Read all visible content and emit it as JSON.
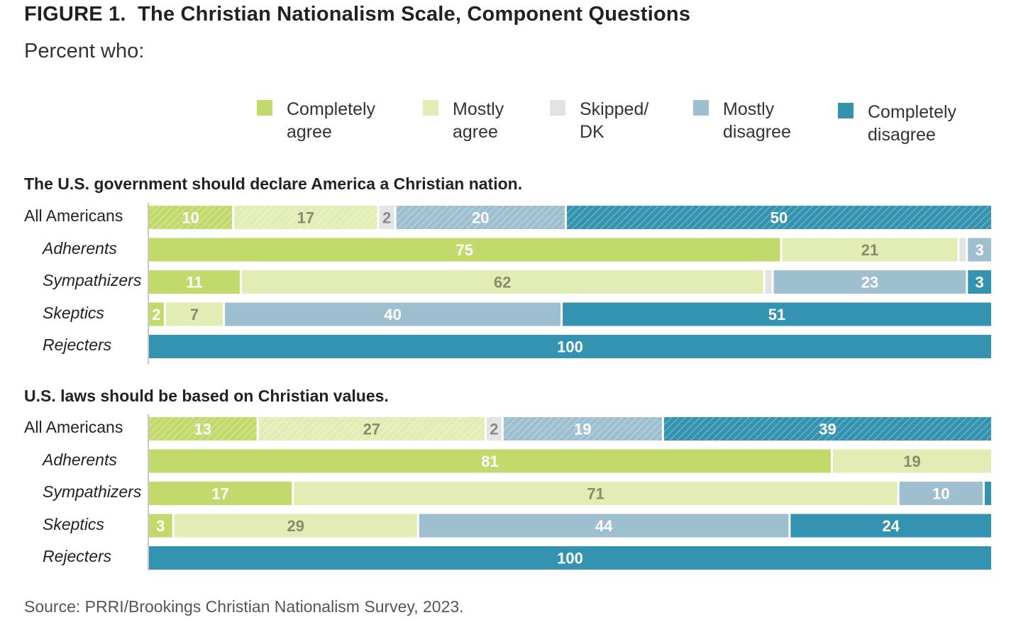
{
  "header": {
    "title": "FIGURE 1.  The Christian Nationalism Scale, Component Questions",
    "subtitle": "Percent who:"
  },
  "legend": [
    {
      "label_line1": "Completely",
      "label_line2": "agree",
      "color": "#c2da6c"
    },
    {
      "label_line1": "Mostly",
      "label_line2": "agree",
      "color": "#e2edb5"
    },
    {
      "label_line1": "Skipped/",
      "label_line2": "DK",
      "color": "#e3e3e3"
    },
    {
      "label_line1": "Mostly",
      "label_line2": "disagree",
      "color": "#9dbfd0"
    },
    {
      "label_line1": "Completely",
      "label_line2": "disagree",
      "color": "#3393b0"
    }
  ],
  "source": "Source: PRRI/Brookings Christian Nationalism Survey, 2023.",
  "chart_data": {
    "type": "bar",
    "orientation": "horizontal",
    "stacked": true,
    "xlim": [
      0,
      100
    ],
    "series_names": [
      "Completely agree",
      "Mostly agree",
      "Skipped/DK",
      "Mostly disagree",
      "Completely disagree"
    ],
    "colors": {
      "Completely agree": "#c2da6c",
      "Mostly agree": "#e2edb5",
      "Skipped/DK": "#e3e3e3",
      "Mostly disagree": "#9dbfd0",
      "Completely disagree": "#3393b0"
    },
    "label_colors": {
      "Completely agree": "#ffffff",
      "Mostly agree": "#8a8a6a",
      "Skipped/DK": "#8a8a8a",
      "Mostly disagree": "#ffffff",
      "Completely disagree": "#ffffff"
    },
    "panels": [
      {
        "title": "The U.S. government should declare America a Christian nation.",
        "rows": [
          {
            "label": "All Americans",
            "italic": false,
            "hatched": true,
            "values": [
              10,
              17,
              2,
              20,
              50
            ],
            "labels": [
              "10",
              "17",
              "2",
              "20",
              "50"
            ]
          },
          {
            "label": "Adherents",
            "italic": true,
            "hatched": false,
            "values": [
              75,
              21,
              1,
              3,
              0
            ],
            "labels": [
              "75",
              "21",
              "",
              "3",
              ""
            ]
          },
          {
            "label": "Sympathizers",
            "italic": true,
            "hatched": false,
            "values": [
              11,
              62,
              1,
              23,
              3
            ],
            "labels": [
              "11",
              "62",
              "",
              "23",
              "3"
            ]
          },
          {
            "label": "Skeptics",
            "italic": true,
            "hatched": false,
            "values": [
              2,
              7,
              0,
              40,
              51
            ],
            "labels": [
              "2",
              "7",
              "",
              "40",
              "51"
            ]
          },
          {
            "label": "Rejecters",
            "italic": true,
            "hatched": false,
            "values": [
              0,
              0,
              0,
              0,
              100
            ],
            "labels": [
              "",
              "",
              "",
              "",
              "100"
            ]
          }
        ]
      },
      {
        "title": "U.S. laws should be based on Christian values.",
        "rows": [
          {
            "label": "All Americans",
            "italic": false,
            "hatched": true,
            "values": [
              13,
              27,
              2,
              19,
              39
            ],
            "labels": [
              "13",
              "27",
              "2",
              "19",
              "39"
            ]
          },
          {
            "label": "Adherents",
            "italic": true,
            "hatched": false,
            "values": [
              81,
              19,
              0,
              0,
              0
            ],
            "labels": [
              "81",
              "19",
              "",
              "",
              ""
            ]
          },
          {
            "label": "Sympathizers",
            "italic": true,
            "hatched": false,
            "values": [
              17,
              71,
              0,
              10,
              1
            ],
            "labels": [
              "17",
              "71",
              "",
              "10",
              ""
            ]
          },
          {
            "label": "Skeptics",
            "italic": true,
            "hatched": false,
            "values": [
              3,
              29,
              0,
              44,
              24
            ],
            "labels": [
              "3",
              "29",
              "",
              "44",
              "24"
            ]
          },
          {
            "label": "Rejecters",
            "italic": true,
            "hatched": false,
            "values": [
              0,
              0,
              0,
              0,
              100
            ],
            "labels": [
              "",
              "",
              "",
              "",
              "100"
            ]
          }
        ]
      }
    ]
  }
}
